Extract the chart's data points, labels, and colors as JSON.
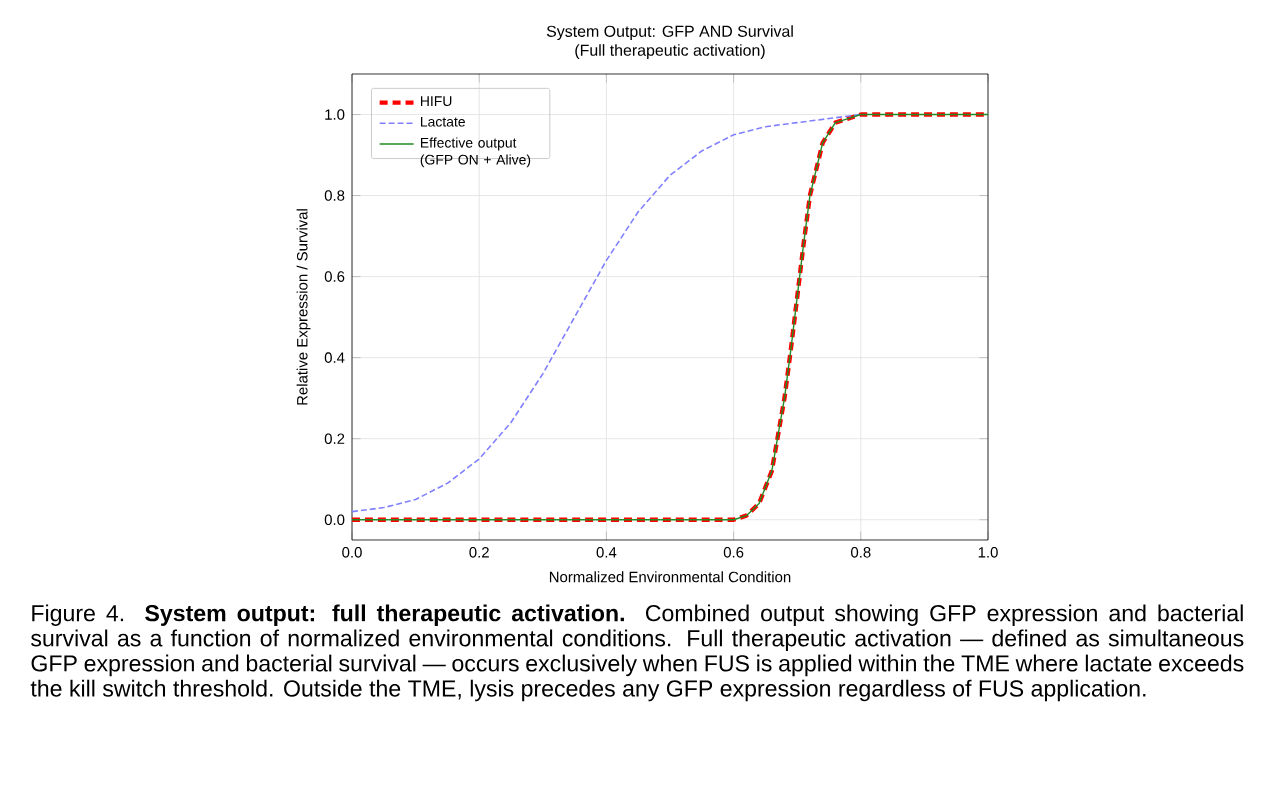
{
  "chart_data": {
    "type": "line",
    "title": "System Output: GFP AND Survival",
    "subtitle": "(Full therapeutic activation)",
    "xlabel": "Normalized Environmental Condition",
    "ylabel": "Relative Expression / Survival",
    "xlim": [
      0,
      1
    ],
    "ylim": [
      -0.05,
      1.1
    ],
    "xticks": [
      {
        "value": 0,
        "label": "0.0"
      },
      {
        "value": 0.2,
        "label": "0.2"
      },
      {
        "value": 0.4,
        "label": "0.4"
      },
      {
        "value": 0.6,
        "label": "0.6"
      },
      {
        "value": 0.8,
        "label": "0.8"
      },
      {
        "value": 1,
        "label": "1.0"
      }
    ],
    "yticks": [
      {
        "value": 0,
        "label": "0.0"
      },
      {
        "value": 0.2,
        "label": "0.2"
      },
      {
        "value": 0.4,
        "label": "0.4"
      },
      {
        "value": 0.6,
        "label": "0.6"
      },
      {
        "value": 0.8,
        "label": "0.8"
      },
      {
        "value": 1,
        "label": "1.0"
      }
    ],
    "grid": true,
    "legend": "top left",
    "marker": "none",
    "series": [
      {
        "name": "HIFU",
        "color": "#ff0000",
        "line_style": "dashed",
        "x": [
          0,
          0.2,
          0.4,
          0.6,
          0.62,
          0.64,
          0.66,
          0.68,
          0.69,
          0.7,
          0.71,
          0.72,
          0.74,
          0.76,
          0.78,
          0.8,
          0.9,
          1
        ],
        "values": [
          0,
          0,
          0,
          0,
          0.01,
          0.04,
          0.12,
          0.3,
          0.42,
          0.55,
          0.68,
          0.8,
          0.93,
          0.98,
          0.99,
          1,
          1,
          1
        ]
      },
      {
        "name": "Lactate",
        "color": "#8080ff",
        "line_style": "dashed",
        "x": [
          0,
          0.05,
          0.1,
          0.15,
          0.2,
          0.25,
          0.3,
          0.35,
          0.4,
          0.45,
          0.5,
          0.55,
          0.6,
          0.65,
          0.7,
          0.75,
          0.8
        ],
        "values": [
          0.02,
          0.03,
          0.05,
          0.09,
          0.15,
          0.24,
          0.36,
          0.5,
          0.64,
          0.76,
          0.85,
          0.91,
          0.95,
          0.97,
          0.98,
          0.99,
          1
        ]
      },
      {
        "name": "Effective output (GFP ON + Alive)",
        "color": "#228b22",
        "line_style": "solid",
        "x": [
          0,
          0.2,
          0.4,
          0.6,
          0.62,
          0.64,
          0.66,
          0.68,
          0.69,
          0.7,
          0.71,
          0.72,
          0.74,
          0.76,
          0.78,
          0.8,
          0.9,
          1
        ],
        "values": [
          0,
          0,
          0,
          0,
          0.01,
          0.04,
          0.12,
          0.3,
          0.42,
          0.55,
          0.68,
          0.8,
          0.93,
          0.98,
          0.99,
          1,
          1,
          1
        ]
      }
    ],
    "annotations": [
      "Figure 4. **System output: full therapeutic activation.** Combined output showing GFP expression and bacterial survival as a function of normalized environmental conditions. Full therapeutic activation — defined as simultaneous GFP expression and bacterial survival — occurs exclusively when FUS is applied within the TME where lactate exceeds the kill switch threshold. Outside the TME, lysis precedes any GFP expression regardless of FUS application."
    ]
  }
}
